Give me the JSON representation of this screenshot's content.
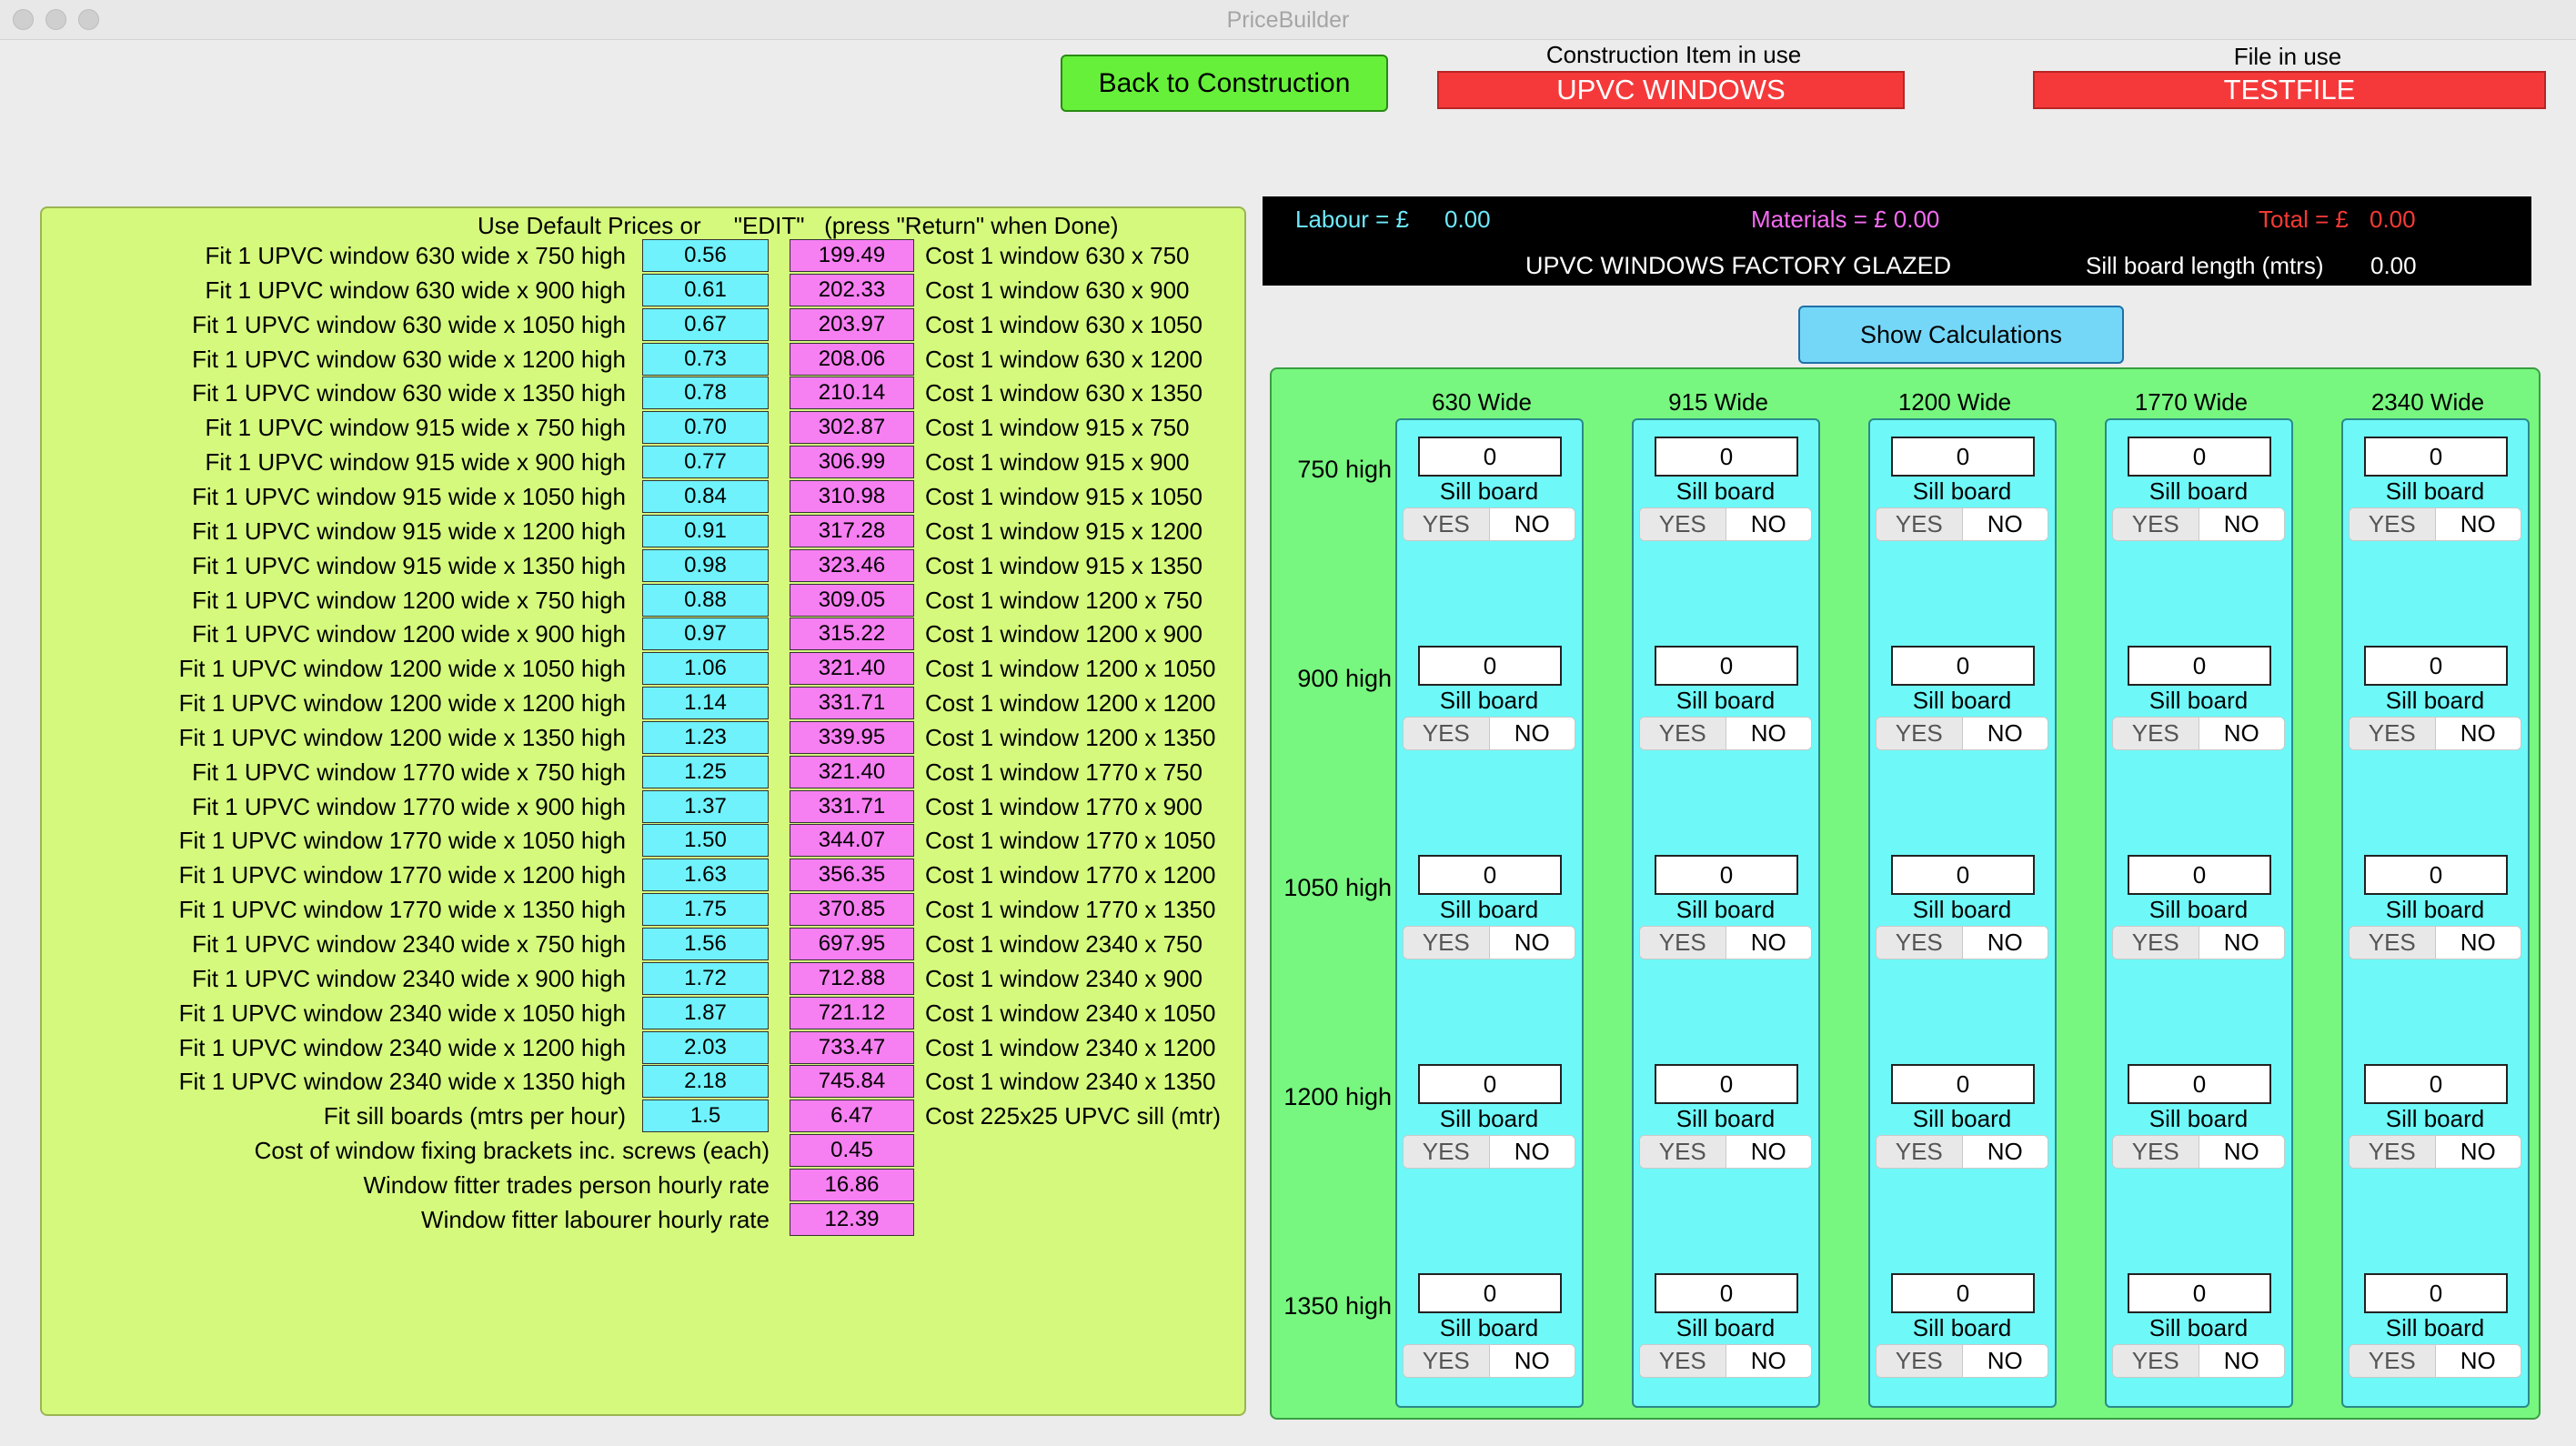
{
  "window": {
    "title": "PriceBuilder"
  },
  "header": {
    "back_button": "Back to Construction",
    "construction_label": "Construction Item in use",
    "construction_value": "UPVC WINDOWS",
    "file_label": "File in use",
    "file_value": "TESTFILE"
  },
  "left": {
    "header": "Use Default Prices or     \"EDIT\"   (press \"Return\" when Done)",
    "rows": [
      {
        "label": "Fit 1 UPVC window 630 wide x 750 high",
        "rate": "0.56",
        "cost": "199.49",
        "cost_label": "Cost 1 window 630 x 750"
      },
      {
        "label": "Fit 1 UPVC window 630 wide x 900 high",
        "rate": "0.61",
        "cost": "202.33",
        "cost_label": "Cost 1 window 630 x 900"
      },
      {
        "label": "Fit 1 UPVC window 630 wide x 1050 high",
        "rate": "0.67",
        "cost": "203.97",
        "cost_label": "Cost 1 window 630 x 1050"
      },
      {
        "label": "Fit 1 UPVC window 630 wide x 1200 high",
        "rate": "0.73",
        "cost": "208.06",
        "cost_label": "Cost 1 window 630 x 1200"
      },
      {
        "label": "Fit 1 UPVC window 630 wide x 1350 high",
        "rate": "0.78",
        "cost": "210.14",
        "cost_label": "Cost 1 window 630 x 1350"
      },
      {
        "label": "Fit 1 UPVC window 915 wide x 750 high",
        "rate": "0.70",
        "cost": "302.87",
        "cost_label": "Cost 1 window 915 x 750"
      },
      {
        "label": "Fit 1 UPVC window 915 wide x 900 high",
        "rate": "0.77",
        "cost": "306.99",
        "cost_label": "Cost 1 window 915 x 900"
      },
      {
        "label": "Fit 1 UPVC window 915 wide x 1050 high",
        "rate": "0.84",
        "cost": "310.98",
        "cost_label": "Cost 1 window 915 x 1050"
      },
      {
        "label": "Fit 1 UPVC window 915 wide x 1200 high",
        "rate": "0.91",
        "cost": "317.28",
        "cost_label": "Cost 1 window 915 x 1200"
      },
      {
        "label": "Fit 1 UPVC window 915 wide x 1350 high",
        "rate": "0.98",
        "cost": "323.46",
        "cost_label": "Cost 1 window 915 x 1350"
      },
      {
        "label": "Fit 1 UPVC window 1200 wide x 750 high",
        "rate": "0.88",
        "cost": "309.05",
        "cost_label": "Cost 1 window 1200 x 750"
      },
      {
        "label": "Fit 1 UPVC window 1200 wide x 900 high",
        "rate": "0.97",
        "cost": "315.22",
        "cost_label": "Cost 1 window 1200 x 900"
      },
      {
        "label": "Fit 1 UPVC window 1200 wide x 1050 high",
        "rate": "1.06",
        "cost": "321.40",
        "cost_label": "Cost 1 window 1200 x 1050"
      },
      {
        "label": "Fit 1 UPVC window 1200 wide x 1200 high",
        "rate": "1.14",
        "cost": "331.71",
        "cost_label": "Cost 1 window 1200 x 1200"
      },
      {
        "label": "Fit 1 UPVC window 1200 wide x 1350 high",
        "rate": "1.23",
        "cost": "339.95",
        "cost_label": "Cost 1 window 1200 x 1350"
      },
      {
        "label": "Fit 1 UPVC window 1770 wide x 750 high",
        "rate": "1.25",
        "cost": "321.40",
        "cost_label": "Cost 1 window 1770 x 750"
      },
      {
        "label": "Fit 1 UPVC window 1770 wide x 900 high",
        "rate": "1.37",
        "cost": "331.71",
        "cost_label": "Cost 1 window 1770 x 900"
      },
      {
        "label": "Fit 1 UPVC window 1770 wide x 1050 high",
        "rate": "1.50",
        "cost": "344.07",
        "cost_label": "Cost 1 window 1770 x 1050"
      },
      {
        "label": "Fit 1 UPVC window 1770 wide x 1200 high",
        "rate": "1.63",
        "cost": "356.35",
        "cost_label": "Cost 1 window 1770 x 1200"
      },
      {
        "label": "Fit 1 UPVC window 1770 wide x 1350 high",
        "rate": "1.75",
        "cost": "370.85",
        "cost_label": "Cost 1 window 1770 x 1350"
      },
      {
        "label": "Fit 1 UPVC window 2340 wide x 750 high",
        "rate": "1.56",
        "cost": "697.95",
        "cost_label": "Cost 1 window 2340 x 750"
      },
      {
        "label": "Fit 1 UPVC window 2340 wide x 900 high",
        "rate": "1.72",
        "cost": "712.88",
        "cost_label": "Cost 1 window 2340 x 900"
      },
      {
        "label": "Fit 1 UPVC window 2340 wide x 1050 high",
        "rate": "1.87",
        "cost": "721.12",
        "cost_label": "Cost 1 window 2340 x 1050"
      },
      {
        "label": "Fit 1 UPVC window 2340 wide x 1200 high",
        "rate": "2.03",
        "cost": "733.47",
        "cost_label": "Cost 1 window 2340 x 1200"
      },
      {
        "label": "Fit 1 UPVC window 2340 wide x 1350 high",
        "rate": "2.18",
        "cost": "745.84",
        "cost_label": "Cost 1 window 2340 x 1350"
      },
      {
        "label": "Fit sill boards (mtrs per hour)",
        "rate": "1.5",
        "cost": "6.47",
        "cost_label": "Cost 225x25 UPVC sill (mtr)"
      }
    ],
    "extra_rows": [
      {
        "label": "Cost of window fixing brackets inc. screws (each)",
        "value": "0.45"
      },
      {
        "label": "Window fitter trades person hourly rate",
        "value": "16.86"
      },
      {
        "label": "Window fitter labourer hourly rate",
        "value": "12.39"
      }
    ]
  },
  "summary": {
    "labour_label": "Labour = £",
    "labour_value": "0.00",
    "materials_label": "Materials = £ 0.00",
    "total_label": "Total = £",
    "total_value": "0.00",
    "product_name": "UPVC WINDOWS FACTORY GLAZED",
    "sill_label": "Sill board length (mtrs)",
    "sill_value": "0.00",
    "colors": {
      "labour": "#6ee9fb",
      "materials": "#f56af2",
      "total": "#f43a36"
    }
  },
  "show_calc_button": "Show Calculations",
  "grid": {
    "widths": [
      "630 Wide",
      "915 Wide",
      "1200 Wide",
      "1770 Wide",
      "2340 Wide"
    ],
    "heights": [
      "750 high",
      "900 high",
      "1050 high",
      "1200 high",
      "1350 high"
    ],
    "quantity": "0",
    "sill_label": "Sill board",
    "yes": "YES",
    "no": "NO"
  }
}
